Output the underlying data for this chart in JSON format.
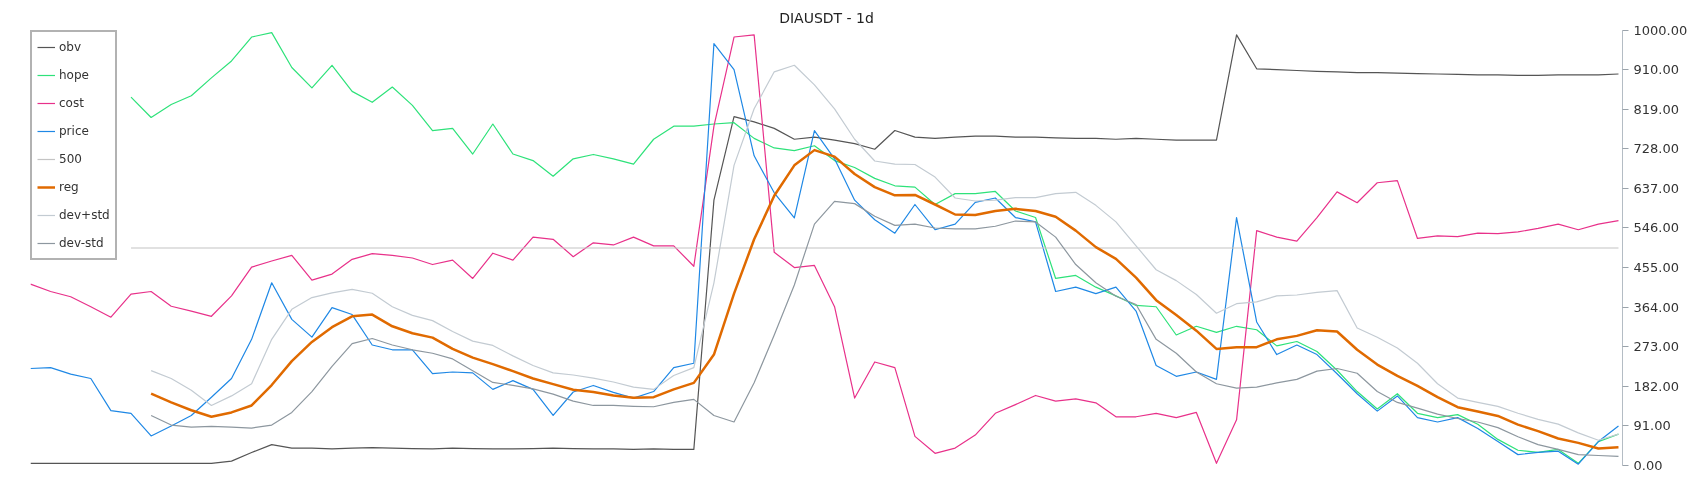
{
  "chart_data": {
    "type": "line",
    "title": "DIAUSDT - 1d",
    "categories": [
      null,
      null,
      null,
      null,
      null,
      null,
      null,
      null,
      null,
      null,
      null,
      null,
      null,
      null,
      null,
      null,
      null,
      null,
      null,
      null,
      null,
      null,
      null,
      null,
      null,
      null,
      null,
      null,
      null,
      null,
      null,
      null,
      null,
      null,
      null,
      null,
      null,
      null,
      null,
      null,
      null,
      null,
      null,
      null,
      null,
      null,
      null,
      null,
      null,
      null,
      null,
      null,
      null,
      null,
      null,
      null,
      null,
      null,
      null,
      null,
      null,
      null,
      null,
      null,
      null,
      null,
      null,
      null,
      null,
      null,
      null,
      null,
      null,
      null,
      null,
      null,
      null,
      null,
      null,
      null
    ],
    "ylim": [
      0,
      1000
    ],
    "yticks": [
      {
        "value": 0,
        "label": "0.00"
      },
      {
        "value": 91,
        "label": "91.00"
      },
      {
        "value": 182,
        "label": "182.00"
      },
      {
        "value": 273,
        "label": "273.00"
      },
      {
        "value": 364,
        "label": "364.00"
      },
      {
        "value": 455,
        "label": "455.00"
      },
      {
        "value": 546,
        "label": "546.00"
      },
      {
        "value": 637,
        "label": "637.00"
      },
      {
        "value": 728,
        "label": "728.00"
      },
      {
        "value": 819,
        "label": "819.00"
      },
      {
        "value": 910,
        "label": "910.00"
      },
      {
        "value": 1000,
        "label": "1000.00"
      }
    ],
    "tick_labels": "y",
    "legend": "top left",
    "line_style": "solid",
    "series": [
      {
        "name": "obv",
        "color": "#555555",
        "values": [
          5,
          5,
          5,
          5,
          5,
          5,
          5,
          5,
          5,
          5,
          10,
          30,
          48,
          40,
          40,
          38,
          40,
          41,
          40,
          39,
          38,
          40,
          39,
          38,
          38,
          39,
          40,
          39,
          38,
          38,
          37,
          38,
          37,
          37,
          610,
          802,
          790,
          775,
          750,
          755,
          748,
          740,
          727,
          770,
          755,
          752,
          755,
          757,
          757,
          755,
          755,
          753,
          752,
          752,
          750,
          752,
          750,
          748,
          748,
          748,
          990,
          912,
          910,
          908,
          906,
          905,
          903,
          903,
          902,
          901,
          900,
          899,
          898,
          898,
          897,
          897,
          898,
          898,
          898,
          900
        ]
      },
      {
        "name": "hope",
        "color": "#2ee27a",
        "values": [
          null,
          null,
          null,
          null,
          null,
          847,
          800,
          830,
          850,
          891,
          930,
          985,
          995,
          915,
          868,
          920,
          860,
          835,
          870,
          828,
          770,
          775,
          716,
          785,
          716,
          701,
          665,
          705,
          715,
          705,
          693,
          750,
          780,
          780,
          785,
          788,
          752,
          730,
          724,
          735,
          701,
          685,
          660,
          643,
          640,
          600,
          625,
          625,
          630,
          585,
          570,
          430,
          437,
          410,
          390,
          368,
          365,
          300,
          320,
          306,
          320,
          312,
          275,
          285,
          262,
          219,
          170,
          130,
          165,
          120,
          110,
          117,
          95,
          60,
          35,
          30,
          37,
          5,
          55,
          72
        ]
      },
      {
        "name": "cost",
        "color": "#e8318a",
        "values": [
          417,
          400,
          388,
          365,
          341,
          394,
          400,
          366,
          355,
          343,
          390,
          456,
          470,
          483,
          426,
          440,
          474,
          487,
          483,
          477,
          462,
          472,
          430,
          488,
          472,
          525,
          520,
          480,
          512,
          507,
          525,
          505,
          505,
          458,
          780,
          985,
          990,
          490,
          455,
          460,
          365,
          155,
          238,
          225,
          67,
          28,
          40,
          70,
          120,
          140,
          161,
          148,
          153,
          144,
          112,
          112,
          120,
          110,
          122,
          5,
          105,
          540,
          525,
          516,
          570,
          629,
          604,
          650,
          655,
          522,
          528,
          526,
          534,
          533,
          537,
          545,
          555,
          542,
          555,
          563
        ]
      },
      {
        "name": "price",
        "color": "#1f88e5",
        "values": [
          223,
          225,
          210,
          200,
          126,
          120,
          68,
          91,
          115,
          157,
          200,
          290,
          420,
          336,
          295,
          363,
          347,
          277,
          266,
          266,
          211,
          215,
          213,
          175,
          195,
          175,
          115,
          169,
          184,
          168,
          155,
          170,
          225,
          235,
          970,
          910,
          712,
          627,
          569,
          770,
          705,
          610,
          565,
          534,
          600,
          542,
          555,
          605,
          615,
          570,
          560,
          400,
          410,
          395,
          410,
          355,
          230,
          205,
          215,
          198,
          570,
          330,
          255,
          277,
          255,
          211,
          165,
          125,
          160,
          110,
          100,
          110,
          85,
          55,
          25,
          30,
          33,
          3,
          55,
          91
        ]
      },
      {
        "name": "500",
        "color": "#c4c4c4",
        "values": [
          null,
          null,
          null,
          null,
          null,
          500,
          500,
          500,
          500,
          500,
          500,
          500,
          500,
          500,
          500,
          500,
          500,
          500,
          500,
          500,
          500,
          500,
          500,
          500,
          500,
          500,
          500,
          500,
          500,
          500,
          500,
          500,
          500,
          500,
          500,
          500,
          500,
          500,
          500,
          500,
          500,
          500,
          500,
          500,
          500,
          500,
          500,
          500,
          500,
          500,
          500,
          500,
          500,
          500,
          500,
          500,
          500,
          500,
          500,
          500,
          500,
          500,
          500,
          500,
          500,
          500,
          500,
          500,
          500,
          500,
          500,
          500,
          500,
          500,
          500,
          500,
          500,
          500,
          500,
          500
        ]
      },
      {
        "name": "reg",
        "color": "#e06a00",
        "values": [
          null,
          null,
          null,
          null,
          null,
          null,
          165,
          145,
          127,
          112,
          122,
          138,
          185,
          240,
          284,
          318,
          343,
          347,
          320,
          304,
          294,
          268,
          248,
          233,
          217,
          200,
          187,
          174,
          169,
          161,
          156,
          157,
          175,
          190,
          255,
          395,
          520,
          620,
          690,
          725,
          710,
          670,
          640,
          621,
          622,
          600,
          577,
          576,
          585,
          590,
          585,
          572,
          540,
          502,
          475,
          432,
          380,
          346,
          310,
          268,
          272,
          272,
          290,
          298,
          311,
          308,
          266,
          232,
          206,
          183,
          157,
          134,
          124,
          114,
          94,
          79,
          62,
          52,
          39,
          42
        ]
      },
      {
        "name": "dev+std",
        "color": "#c3cbd2",
        "values": [
          null,
          null,
          null,
          null,
          null,
          null,
          218,
          200,
          173,
          138,
          160,
          188,
          290,
          359,
          386,
          397,
          405,
          396,
          365,
          345,
          333,
          308,
          286,
          276,
          252,
          230,
          213,
          208,
          201,
          192,
          180,
          175,
          207,
          225,
          420,
          690,
          820,
          905,
          920,
          875,
          820,
          750,
          700,
          693,
          692,
          663,
          615,
          608,
          610,
          616,
          616,
          625,
          628,
          598,
          560,
          505,
          450,
          425,
          393,
          350,
          372,
          376,
          390,
          392,
          398,
          402,
          316,
          295,
          270,
          235,
          188,
          155,
          145,
          136,
          120,
          106,
          95,
          75,
          58,
          72
        ]
      },
      {
        "name": "dev-std",
        "color": "#8d979f",
        "values": [
          null,
          null,
          null,
          null,
          null,
          null,
          115,
          93,
          88,
          90,
          88,
          86,
          93,
          122,
          170,
          228,
          280,
          292,
          277,
          266,
          258,
          245,
          218,
          191,
          184,
          176,
          164,
          148,
          138,
          138,
          136,
          135,
          145,
          152,
          115,
          100,
          190,
          300,
          415,
          555,
          607,
          602,
          573,
          552,
          555,
          546,
          544,
          544,
          550,
          562,
          560,
          525,
          462,
          420,
          389,
          370,
          290,
          258,
          215,
          188,
          178,
          180,
          190,
          198,
          217,
          223,
          212,
          170,
          145,
          132,
          118,
          108,
          100,
          87,
          66,
          48,
          37,
          25,
          23,
          21
        ]
      }
    ]
  }
}
